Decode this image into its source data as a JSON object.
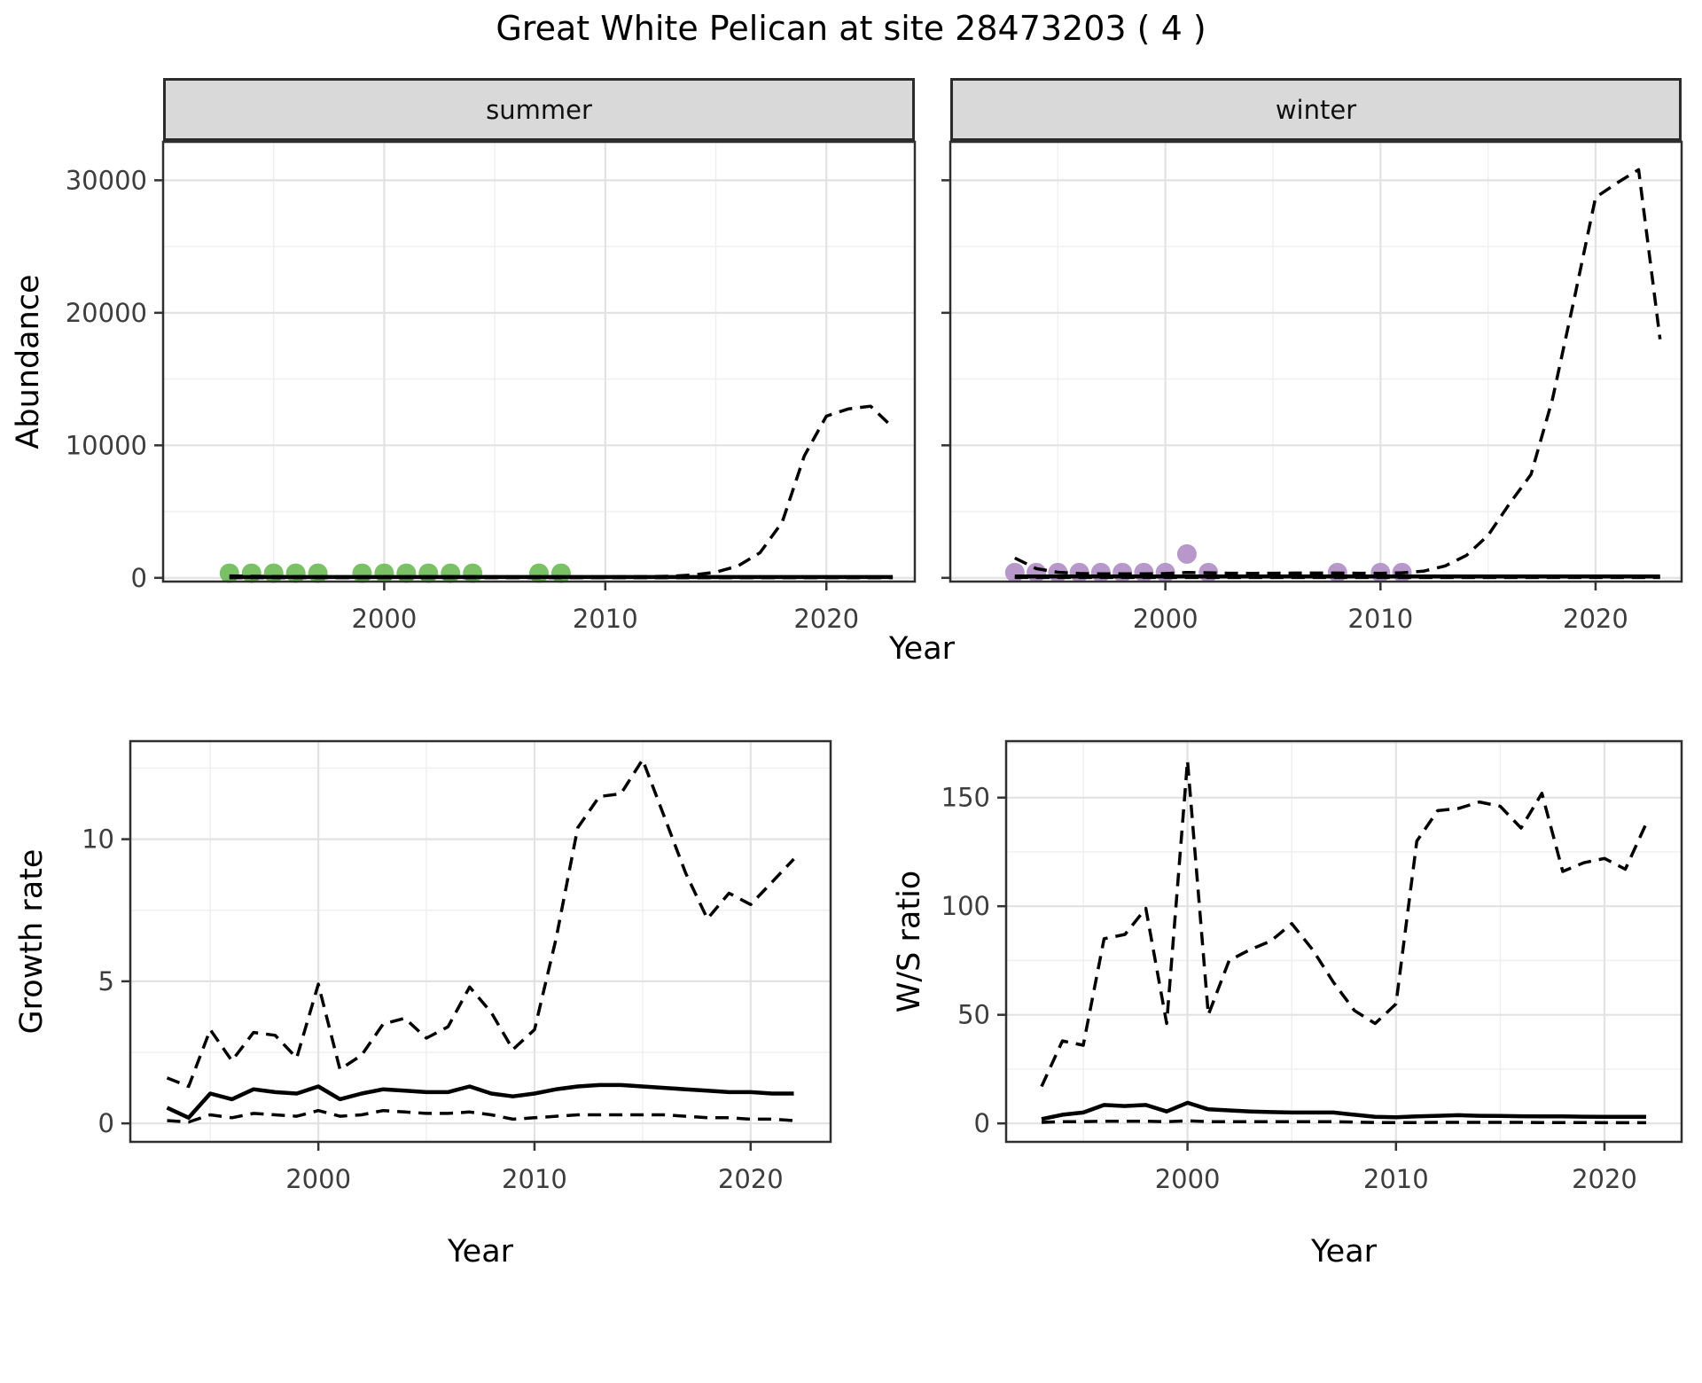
{
  "title": "Great White Pelican at site 28473203 ( 4 )",
  "axis_labels": {
    "abundance": "Abundance",
    "year": "Year",
    "growth_rate": "Growth rate",
    "ws_ratio": "W/S ratio"
  },
  "facets": {
    "summer": "summer",
    "winter": "winter"
  },
  "colors": {
    "summer_points": "#72BE5C",
    "winter_points": "#B491C8",
    "line": "#000000",
    "strip_bg": "#D9D9D9",
    "panel_border": "#2f2f2f",
    "grid_major": "#E2E2E2",
    "grid_minor": "#EFEFEF",
    "tick_label": "#3d3d3d"
  },
  "chart_data": [
    {
      "id": "abundance-summer",
      "type": "line",
      "facet_label": "summer",
      "xlabel": "Year",
      "ylabel": "Abundance",
      "xlim": [
        1990,
        2024
      ],
      "ylim": [
        -280,
        32900
      ],
      "xticks": [
        2000,
        2010,
        2020
      ],
      "yticks": [
        0,
        10000,
        20000,
        30000
      ],
      "xminor": [
        1995,
        2005,
        2015
      ],
      "yminor": [
        5000,
        15000,
        25000
      ],
      "x": [
        1993,
        1994,
        1995,
        1996,
        1997,
        1998,
        1999,
        2000,
        2001,
        2002,
        2003,
        2004,
        2005,
        2006,
        2007,
        2008,
        2009,
        2010,
        2011,
        2012,
        2013,
        2014,
        2015,
        2016,
        2017,
        2018,
        2019,
        2020,
        2021,
        2022,
        2023
      ],
      "series": [
        {
          "name": "upper_95ci",
          "style": "dashed",
          "values": [
            150,
            120,
            100,
            90,
            85,
            80,
            80,
            80,
            80,
            80,
            80,
            80,
            80,
            80,
            80,
            80,
            80,
            80,
            85,
            95,
            130,
            220,
            430,
            900,
            1900,
            4200,
            9200,
            12200,
            12750,
            12950,
            11350
          ]
        },
        {
          "name": "lower_95ci",
          "style": "dashed",
          "values": [
            15,
            15,
            15,
            15,
            15,
            15,
            15,
            15,
            15,
            15,
            15,
            15,
            15,
            15,
            15,
            15,
            15,
            15,
            15,
            15,
            15,
            15,
            15,
            15,
            15,
            15,
            15,
            15,
            15,
            15,
            15
          ]
        },
        {
          "name": "model_fit",
          "style": "solid",
          "values": [
            60,
            60,
            60,
            60,
            60,
            60,
            60,
            60,
            60,
            60,
            60,
            60,
            60,
            60,
            60,
            60,
            60,
            60,
            60,
            60,
            60,
            60,
            60,
            60,
            60,
            60,
            60,
            60,
            60,
            60,
            60
          ]
        }
      ],
      "points": {
        "name": "observed_counts_summer",
        "color": "#72BE5C",
        "data": [
          [
            1993,
            350
          ],
          [
            1994,
            350
          ],
          [
            1995,
            350
          ],
          [
            1996,
            350
          ],
          [
            1997,
            350
          ],
          [
            1999,
            350
          ],
          [
            2000,
            350
          ],
          [
            2001,
            350
          ],
          [
            2002,
            350
          ],
          [
            2003,
            350
          ],
          [
            2004,
            350
          ],
          [
            2007,
            350
          ],
          [
            2008,
            350
          ]
        ]
      }
    },
    {
      "id": "abundance-winter",
      "type": "line",
      "facet_label": "winter",
      "xlabel": "Year",
      "ylabel": "Abundance",
      "xlim": [
        1990,
        2024
      ],
      "ylim": [
        -280,
        32900
      ],
      "xticks": [
        2000,
        2010,
        2020
      ],
      "yticks": [
        0,
        10000,
        20000,
        30000
      ],
      "xminor": [
        1995,
        2005,
        2015
      ],
      "yminor": [
        5000,
        15000,
        25000
      ],
      "x": [
        1993,
        1994,
        1995,
        1996,
        1997,
        1998,
        1999,
        2000,
        2001,
        2002,
        2003,
        2004,
        2005,
        2006,
        2007,
        2008,
        2009,
        2010,
        2011,
        2012,
        2013,
        2014,
        2015,
        2016,
        2017,
        2018,
        2019,
        2020,
        2021,
        2022,
        2023
      ],
      "series": [
        {
          "name": "upper_95ci",
          "style": "dashed",
          "values": [
            1500,
            700,
            420,
            330,
            300,
            300,
            300,
            330,
            400,
            380,
            350,
            340,
            350,
            360,
            360,
            360,
            350,
            340,
            380,
            500,
            900,
            1700,
            3200,
            5600,
            7800,
            13500,
            21000,
            28700,
            29800,
            30800,
            18000
          ]
        },
        {
          "name": "lower_95ci",
          "style": "dashed",
          "values": [
            25,
            25,
            25,
            25,
            25,
            25,
            25,
            25,
            25,
            25,
            25,
            25,
            25,
            25,
            25,
            25,
            25,
            25,
            25,
            25,
            25,
            25,
            25,
            25,
            25,
            25,
            25,
            25,
            25,
            25,
            25
          ]
        },
        {
          "name": "model_fit",
          "style": "solid",
          "values": [
            110,
            110,
            110,
            110,
            110,
            110,
            110,
            110,
            110,
            110,
            110,
            110,
            110,
            110,
            110,
            110,
            110,
            110,
            110,
            110,
            110,
            110,
            110,
            110,
            110,
            110,
            110,
            110,
            110,
            110,
            110
          ]
        }
      ],
      "points": {
        "name": "observed_counts_winter",
        "color": "#B491C8",
        "data": [
          [
            1993,
            400
          ],
          [
            1994,
            400
          ],
          [
            1995,
            400
          ],
          [
            1996,
            400
          ],
          [
            1997,
            400
          ],
          [
            1998,
            400
          ],
          [
            1999,
            400
          ],
          [
            2000,
            400
          ],
          [
            2001,
            1800
          ],
          [
            2002,
            400
          ],
          [
            2008,
            400
          ],
          [
            2010,
            400
          ],
          [
            2011,
            400
          ]
        ]
      }
    },
    {
      "id": "growth-rate",
      "type": "line",
      "xlabel": "Year",
      "ylabel": "Growth rate",
      "xlim": [
        1991.3,
        2023.7
      ],
      "ylim": [
        -0.65,
        13.45
      ],
      "xticks": [
        2000,
        2010,
        2020
      ],
      "yticks": [
        0,
        5,
        10
      ],
      "xminor": [
        1995,
        2005,
        2015
      ],
      "yminor": [
        2.5,
        7.5,
        12.5
      ],
      "x": [
        1993,
        1994,
        1995,
        1996,
        1997,
        1998,
        1999,
        2000,
        2001,
        2002,
        2003,
        2004,
        2005,
        2006,
        2007,
        2008,
        2009,
        2010,
        2011,
        2012,
        2013,
        2014,
        2015,
        2016,
        2017,
        2018,
        2019,
        2020,
        2021,
        2022
      ],
      "series": [
        {
          "name": "upper_95ci",
          "style": "dashed",
          "values": [
            1.6,
            1.3,
            3.3,
            2.2,
            3.2,
            3.1,
            2.3,
            4.9,
            1.9,
            2.4,
            3.5,
            3.7,
            3.0,
            3.4,
            4.8,
            3.9,
            2.6,
            3.3,
            6.5,
            10.4,
            11.5,
            11.6,
            12.8,
            10.8,
            8.8,
            7.2,
            8.1,
            7.7,
            8.5,
            9.3
          ]
        },
        {
          "name": "lower_95ci",
          "style": "dashed",
          "values": [
            0.1,
            0.05,
            0.3,
            0.2,
            0.35,
            0.3,
            0.25,
            0.45,
            0.25,
            0.3,
            0.45,
            0.4,
            0.35,
            0.35,
            0.4,
            0.3,
            0.15,
            0.2,
            0.25,
            0.3,
            0.3,
            0.3,
            0.3,
            0.3,
            0.25,
            0.2,
            0.2,
            0.15,
            0.15,
            0.1
          ]
        },
        {
          "name": "median",
          "style": "solid",
          "values": [
            0.55,
            0.2,
            1.05,
            0.85,
            1.2,
            1.1,
            1.05,
            1.3,
            0.85,
            1.05,
            1.2,
            1.15,
            1.1,
            1.1,
            1.3,
            1.05,
            0.95,
            1.05,
            1.2,
            1.3,
            1.35,
            1.35,
            1.3,
            1.25,
            1.2,
            1.15,
            1.1,
            1.1,
            1.05,
            1.05
          ]
        }
      ]
    },
    {
      "id": "ws-ratio",
      "type": "line",
      "xlabel": "Year",
      "ylabel": "W/S ratio",
      "xlim": [
        1991.3,
        2023.7
      ],
      "ylim": [
        -8.5,
        176
      ],
      "xticks": [
        2000,
        2010,
        2020
      ],
      "yticks": [
        0,
        50,
        100,
        150
      ],
      "xminor": [
        1995,
        2005,
        2015
      ],
      "yminor": [
        25,
        75,
        125,
        175
      ],
      "x": [
        1993,
        1994,
        1995,
        1996,
        1997,
        1998,
        1999,
        2000,
        2001,
        2002,
        2003,
        2004,
        2005,
        2006,
        2007,
        2008,
        2009,
        2010,
        2011,
        2012,
        2013,
        2014,
        2015,
        2016,
        2017,
        2018,
        2019,
        2020,
        2021,
        2022
      ],
      "series": [
        {
          "name": "upper_95ci",
          "style": "dashed",
          "values": [
            17,
            38,
            36,
            85,
            87,
            99,
            46,
            167,
            50,
            75,
            80,
            84,
            92,
            80,
            65,
            52,
            46,
            55,
            130,
            144,
            145,
            148,
            146,
            136,
            152,
            116,
            120,
            122,
            117,
            138
          ]
        },
        {
          "name": "lower_95ci",
          "style": "dashed",
          "values": [
            0.5,
            0.8,
            0.8,
            1,
            1,
            1,
            0.8,
            1.2,
            0.8,
            0.8,
            0.8,
            0.8,
            0.8,
            0.8,
            0.8,
            0.6,
            0.4,
            0.4,
            0.4,
            0.5,
            0.5,
            0.5,
            0.5,
            0.5,
            0.4,
            0.4,
            0.4,
            0.3,
            0.3,
            0.3
          ]
        },
        {
          "name": "median",
          "style": "solid",
          "values": [
            2,
            4,
            5,
            8.5,
            8,
            8.5,
            5.5,
            9.5,
            6.5,
            6,
            5.5,
            5.2,
            5,
            5,
            5,
            4,
            3,
            2.8,
            3.2,
            3.5,
            3.8,
            3.5,
            3.4,
            3.3,
            3.2,
            3.2,
            3.1,
            3,
            3,
            3
          ]
        }
      ]
    }
  ]
}
